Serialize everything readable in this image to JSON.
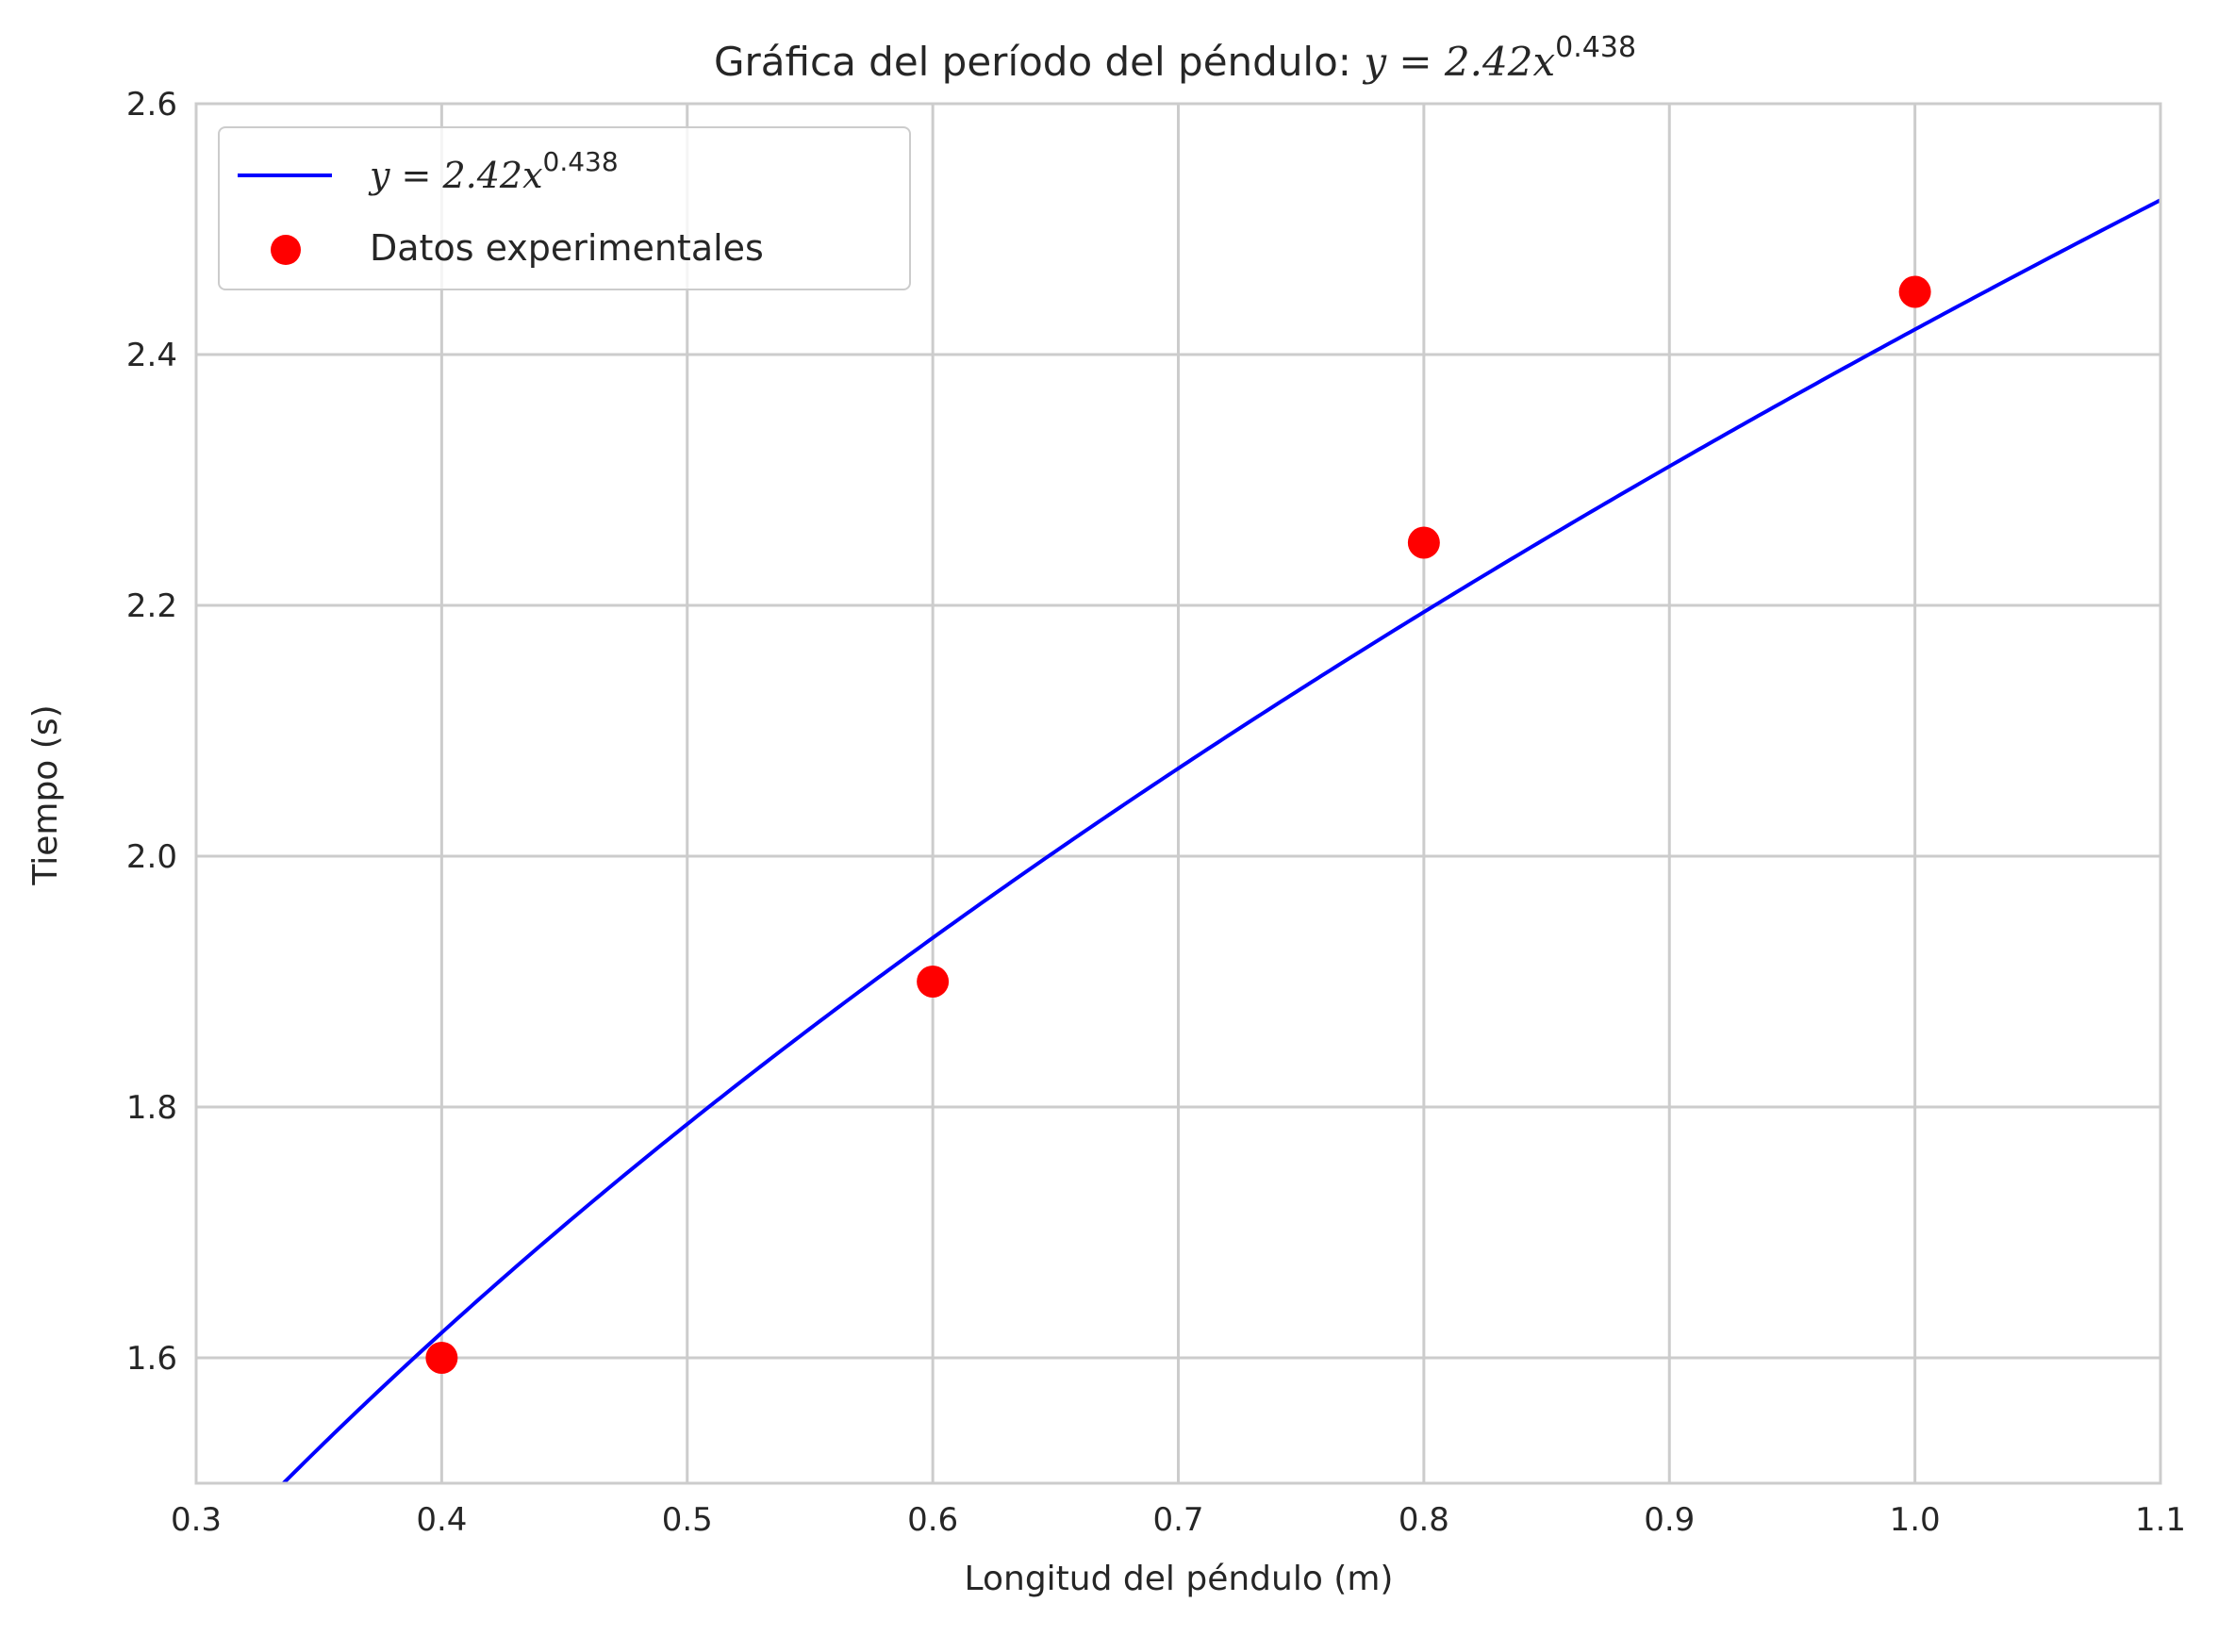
{
  "chart_data": {
    "type": "line",
    "title": "Gráfica del período del péndulo: ",
    "title_math": {
      "coef": "y = 2.42",
      "var": "x",
      "exp": "0.438"
    },
    "xlabel": "Longitud del péndulo (m)",
    "ylabel": "Tiempo (s)",
    "xlim": [
      0.3,
      1.1
    ],
    "ylim": [
      1.5,
      2.6
    ],
    "xticks": [
      0.3,
      0.4,
      0.5,
      0.6,
      0.7,
      0.8,
      0.9,
      1.0,
      1.1
    ],
    "xtick_labels": [
      "0.3",
      "0.4",
      "0.5",
      "0.6",
      "0.7",
      "0.8",
      "0.9",
      "1.0",
      "1.1"
    ],
    "yticks": [
      1.6,
      1.8,
      2.0,
      2.2,
      2.4,
      2.6
    ],
    "ytick_labels": [
      "1.6",
      "1.8",
      "2.0",
      "2.2",
      "2.4",
      "2.6"
    ],
    "grid": true,
    "legend_position": "top-left",
    "series": [
      {
        "name": "y = 2.42x^0.438",
        "kind": "line",
        "color": "#0000ff",
        "formula": {
          "a": 2.42,
          "b": 0.438
        },
        "x_range": [
          0.3,
          1.1
        ]
      },
      {
        "name": "Datos experimentales",
        "kind": "scatter",
        "color": "#ff0000",
        "x": [
          0.4,
          0.6,
          0.8,
          1.0
        ],
        "y": [
          1.6,
          1.9,
          2.25,
          2.45
        ]
      }
    ],
    "legend": {
      "line_label": {
        "coef": "y = 2.42",
        "var": "x",
        "exp": "0.438"
      },
      "scatter_label": "Datos experimentales"
    }
  }
}
